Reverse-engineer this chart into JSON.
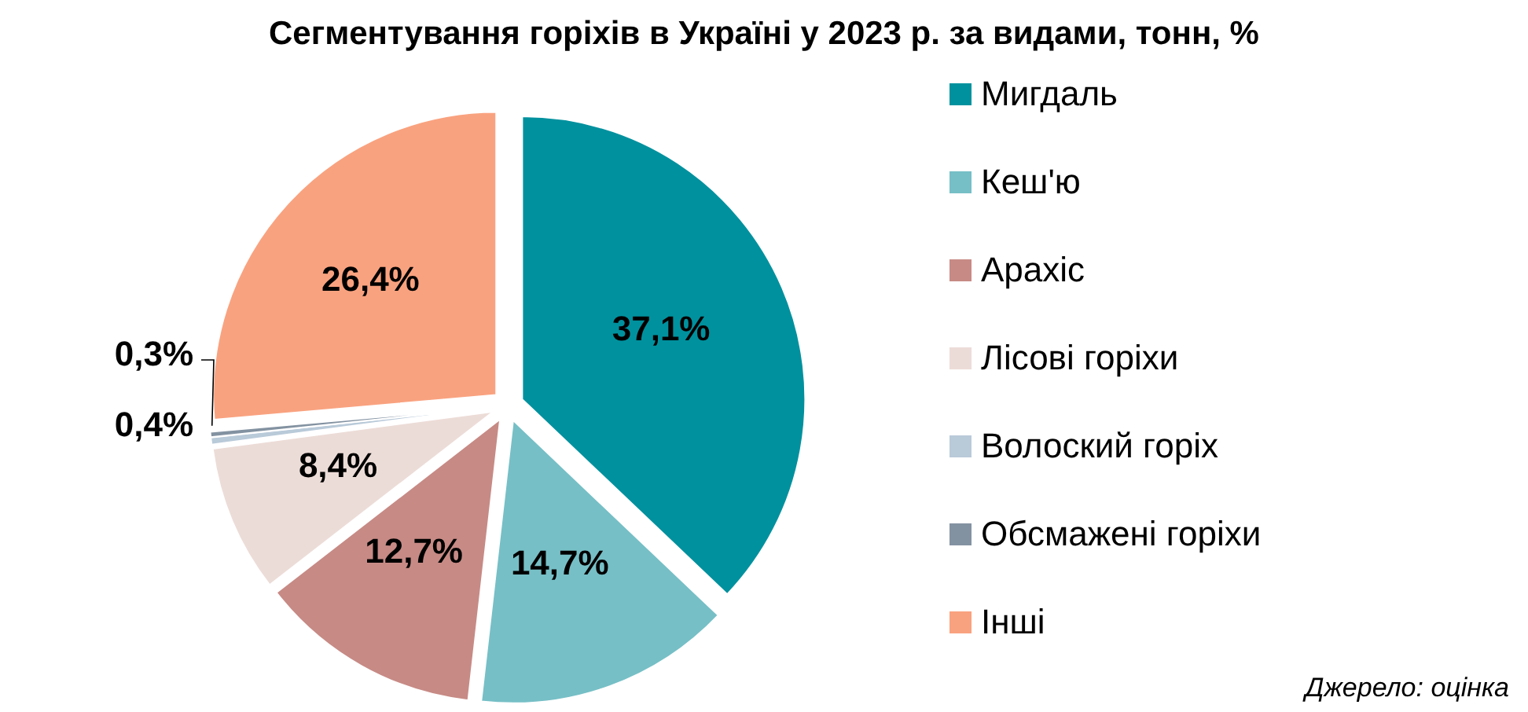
{
  "chart_data": {
    "type": "pie",
    "title": "Сегментування горіхів в Україні у 2023 р. за видами, тонн, %",
    "categories": [
      "Мигдаль",
      "Кеш'ю",
      "Арахіс",
      "Лісові горіхи",
      "Волоский горіх",
      "Обсмажені горіхи",
      "Інші"
    ],
    "values": [
      37.1,
      14.7,
      12.7,
      8.4,
      0.4,
      0.3,
      26.4
    ],
    "colors": [
      "#00919e",
      "#76bfc6",
      "#c78a85",
      "#ecdcd7",
      "#b9cad9",
      "#8392a1",
      "#f9a27f"
    ],
    "value_labels": [
      "37,1%",
      "14,7%",
      "12,7%",
      "8,4%",
      "0,4%",
      "0,3%",
      "26,4%"
    ],
    "legend": "right",
    "annotations": [
      "Джерело: оцінка"
    ]
  }
}
